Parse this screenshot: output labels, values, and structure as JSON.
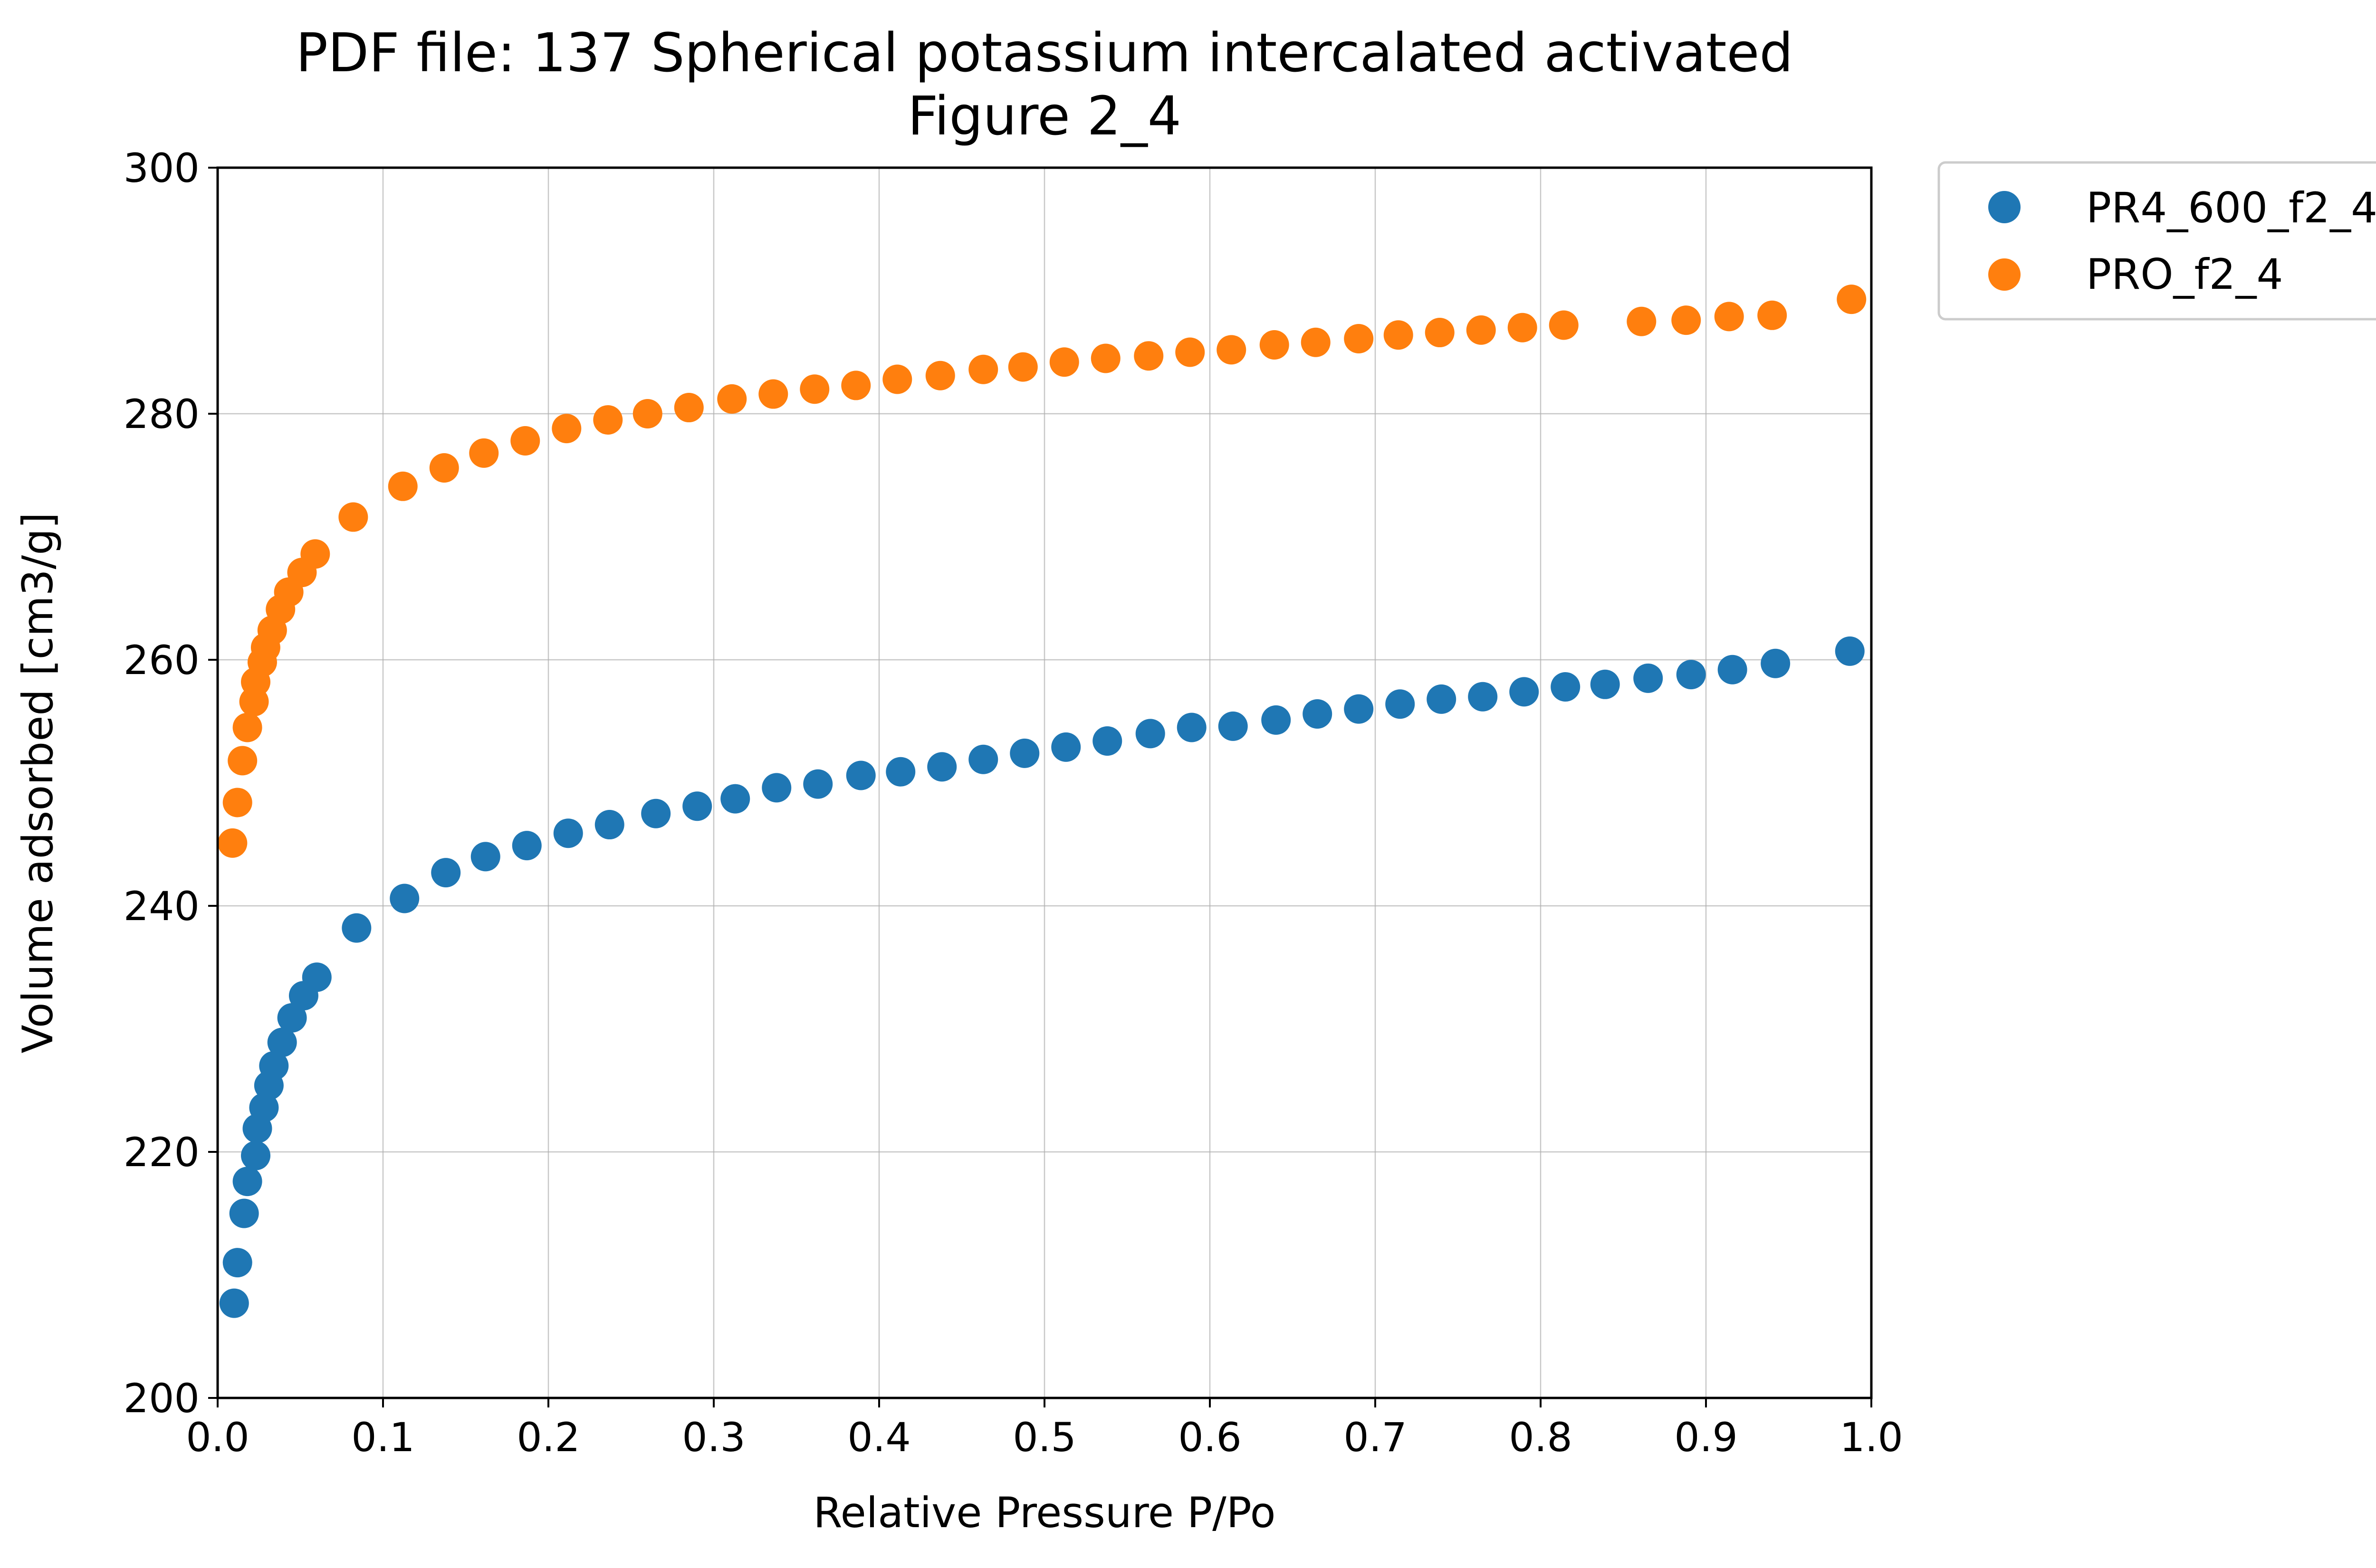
{
  "chart_data": {
    "type": "scatter",
    "title_line1": "PDF file: 137 Spherical potassium intercalated activated",
    "title_line2": "Figure 2_4",
    "xlabel": "Relative Pressure P/Po",
    "ylabel": "Volume adsorbed [cm3/g]",
    "xlim": [
      0.0,
      1.0
    ],
    "ylim": [
      200,
      300
    ],
    "xticks": [
      "0.0",
      "0.1",
      "0.2",
      "0.3",
      "0.4",
      "0.5",
      "0.6",
      "0.7",
      "0.8",
      "0.9",
      "1.0"
    ],
    "yticks": [
      "200",
      "220",
      "240",
      "260",
      "280",
      "300"
    ],
    "grid": true,
    "legend_position": "outside-top-right",
    "series": [
      {
        "name": "PR4_600_f2_4",
        "color": "#1f77b4",
        "points": [
          [
            0.01,
            207.7
          ],
          [
            0.012,
            211.0
          ],
          [
            0.016,
            215.0
          ],
          [
            0.018,
            217.6
          ],
          [
            0.023,
            219.7
          ],
          [
            0.024,
            221.9
          ],
          [
            0.028,
            223.6
          ],
          [
            0.031,
            225.4
          ],
          [
            0.034,
            227.0
          ],
          [
            0.039,
            228.9
          ],
          [
            0.045,
            230.9
          ],
          [
            0.052,
            232.7
          ],
          [
            0.06,
            234.2
          ],
          [
            0.084,
            238.2
          ],
          [
            0.113,
            240.6
          ],
          [
            0.138,
            242.7
          ],
          [
            0.162,
            244.0
          ],
          [
            0.187,
            244.9
          ],
          [
            0.212,
            245.9
          ],
          [
            0.237,
            246.6
          ],
          [
            0.265,
            247.5
          ],
          [
            0.29,
            248.1
          ],
          [
            0.313,
            248.7
          ],
          [
            0.338,
            249.6
          ],
          [
            0.363,
            249.9
          ],
          [
            0.389,
            250.6
          ],
          [
            0.413,
            250.9
          ],
          [
            0.438,
            251.3
          ],
          [
            0.463,
            251.9
          ],
          [
            0.488,
            252.4
          ],
          [
            0.513,
            252.9
          ],
          [
            0.538,
            253.4
          ],
          [
            0.564,
            254.0
          ],
          [
            0.589,
            254.5
          ],
          [
            0.614,
            254.6
          ],
          [
            0.64,
            255.1
          ],
          [
            0.665,
            255.6
          ],
          [
            0.69,
            256.0
          ],
          [
            0.715,
            256.4
          ],
          [
            0.74,
            256.8
          ],
          [
            0.765,
            257.0
          ],
          [
            0.79,
            257.4
          ],
          [
            0.815,
            257.8
          ],
          [
            0.839,
            258.0
          ],
          [
            0.865,
            258.5
          ],
          [
            0.891,
            258.8
          ],
          [
            0.916,
            259.2
          ],
          [
            0.942,
            259.7
          ],
          [
            0.987,
            260.7
          ]
        ]
      },
      {
        "name": "PRO_f2_4",
        "color": "#ff7f0e",
        "points": [
          [
            0.009,
            245.1
          ],
          [
            0.012,
            248.4
          ],
          [
            0.015,
            251.8
          ],
          [
            0.018,
            254.5
          ],
          [
            0.022,
            256.6
          ],
          [
            0.023,
            258.2
          ],
          [
            0.027,
            259.8
          ],
          [
            0.029,
            261.0
          ],
          [
            0.033,
            262.4
          ],
          [
            0.038,
            264.1
          ],
          [
            0.043,
            265.5
          ],
          [
            0.051,
            267.1
          ],
          [
            0.059,
            268.6
          ],
          [
            0.082,
            271.6
          ],
          [
            0.112,
            274.1
          ],
          [
            0.137,
            275.6
          ],
          [
            0.161,
            276.8
          ],
          [
            0.186,
            277.8
          ],
          [
            0.211,
            278.8
          ],
          [
            0.236,
            279.5
          ],
          [
            0.26,
            280.0
          ],
          [
            0.285,
            280.5
          ],
          [
            0.311,
            281.2
          ],
          [
            0.336,
            281.6
          ],
          [
            0.361,
            282.0
          ],
          [
            0.386,
            282.3
          ],
          [
            0.411,
            282.8
          ],
          [
            0.437,
            283.1
          ],
          [
            0.463,
            283.6
          ],
          [
            0.487,
            283.8
          ],
          [
            0.512,
            284.2
          ],
          [
            0.537,
            284.5
          ],
          [
            0.563,
            284.7
          ],
          [
            0.588,
            285.0
          ],
          [
            0.613,
            285.2
          ],
          [
            0.639,
            285.6
          ],
          [
            0.664,
            285.8
          ],
          [
            0.69,
            286.1
          ],
          [
            0.714,
            286.4
          ],
          [
            0.739,
            286.6
          ],
          [
            0.764,
            286.8
          ],
          [
            0.789,
            287.0
          ],
          [
            0.814,
            287.2
          ],
          [
            0.861,
            287.5
          ],
          [
            0.888,
            287.6
          ],
          [
            0.914,
            287.9
          ],
          [
            0.94,
            288.0
          ],
          [
            0.988,
            289.3
          ]
        ]
      }
    ]
  }
}
